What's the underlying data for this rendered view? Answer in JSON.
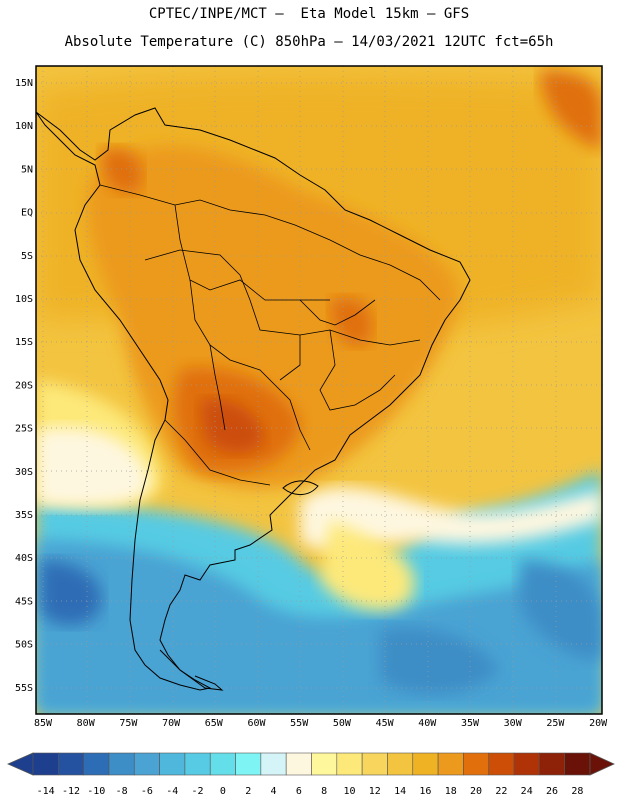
{
  "header": {
    "line1": "CPTEC/INPE/MCT –  Eta Model 15km – GFS",
    "line2": "Absolute Temperature (C) 850hPa – 14/03/2021 12UTC fct=65h"
  },
  "map": {
    "lat_labels": [
      "15N",
      "10N",
      "5N",
      "EQ",
      "5S",
      "10S",
      "15S",
      "20S",
      "25S",
      "30S",
      "35S",
      "40S",
      "45S",
      "50S",
      "55S"
    ],
    "lon_labels": [
      "85W",
      "80W",
      "75W",
      "70W",
      "65W",
      "60W",
      "55W",
      "50W",
      "45W",
      "40W",
      "35W",
      "30W",
      "25W",
      "20W"
    ],
    "extent": {
      "lon": [
        -86,
        -20
      ],
      "lat": [
        -58,
        17
      ]
    }
  },
  "colorbar": {
    "labels": [
      "-14",
      "-12",
      "-10",
      "-8",
      "-6",
      "-4",
      "-2",
      "0",
      "2",
      "4",
      "6",
      "8",
      "10",
      "12",
      "14",
      "16",
      "18",
      "20",
      "22",
      "24",
      "26",
      "28"
    ],
    "colors": [
      "#1d3f8e",
      "#2452a0",
      "#2d6db5",
      "#3d8dc6",
      "#4aa3d3",
      "#4fb7dc",
      "#56cbe3",
      "#64dfe9",
      "#7ff4f4",
      "#d4f4f8",
      "#fef7e0",
      "#fff79b",
      "#fde97a",
      "#f8d55d",
      "#f3c440",
      "#efb225",
      "#ec9a1e",
      "#e06f0c",
      "#cc4e07",
      "#b03307",
      "#8d2208",
      "#6a1208"
    ]
  }
}
